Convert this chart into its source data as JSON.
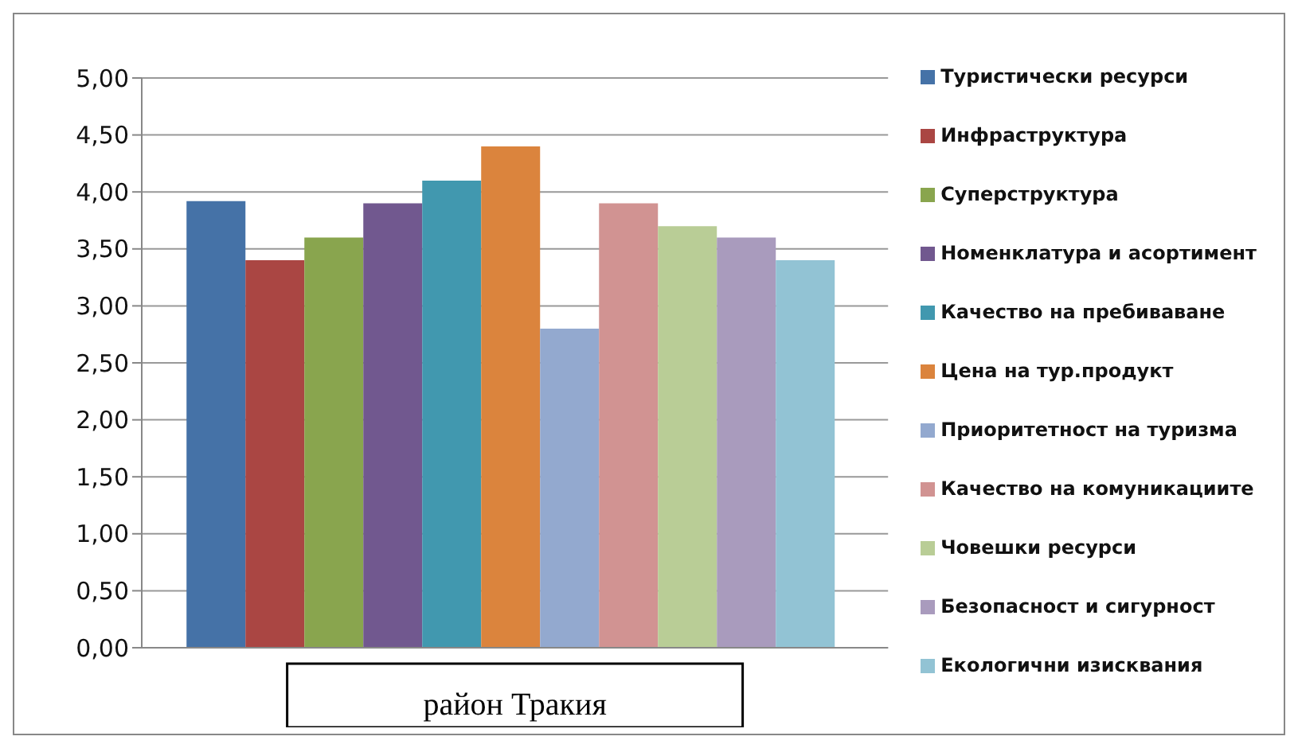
{
  "chart_data": {
    "type": "bar",
    "categories": [
      "район Тракия"
    ],
    "series": [
      {
        "name": "Туристически ресурси",
        "color": "#4572a7",
        "values": [
          3.92
        ]
      },
      {
        "name": "Инфраструктура",
        "color": "#aa4643",
        "values": [
          3.4
        ]
      },
      {
        "name": "Суперструктура",
        "color": "#89a54e",
        "values": [
          3.6
        ]
      },
      {
        "name": "Номенклатура и асортимент",
        "color": "#71588f",
        "values": [
          3.9
        ]
      },
      {
        "name": "Качество на пребиваване",
        "color": "#4198af",
        "values": [
          4.1
        ]
      },
      {
        "name": "Цена на тур.продукт",
        "color": "#db843d",
        "values": [
          4.4
        ]
      },
      {
        "name": "Приоритетност на туризма",
        "color": "#93a9cf",
        "values": [
          2.8
        ]
      },
      {
        "name": "Качество на комуникациите",
        "color": "#d19392",
        "values": [
          3.9
        ]
      },
      {
        "name": "Човешки ресурси",
        "color": "#b9cd96",
        "values": [
          3.7
        ]
      },
      {
        "name": "Безопасност и сигурност",
        "color": "#a99bbd",
        "values": [
          3.6
        ]
      },
      {
        "name": "Екологични изисквания",
        "color": "#92c3d4",
        "values": [
          3.4
        ]
      }
    ],
    "ylim": [
      0,
      5
    ],
    "yticks": [
      {
        "value": 0,
        "label": "0,00"
      },
      {
        "value": 0.5,
        "label": "0,50"
      },
      {
        "value": 1,
        "label": "1,00"
      },
      {
        "value": 1.5,
        "label": "1,50"
      },
      {
        "value": 2,
        "label": "2,00"
      },
      {
        "value": 2.5,
        "label": "2,50"
      },
      {
        "value": 3,
        "label": "3,00"
      },
      {
        "value": 3.5,
        "label": "3,50"
      },
      {
        "value": 4,
        "label": "4,00"
      },
      {
        "value": 4.5,
        "label": "4,50"
      },
      {
        "value": 5,
        "label": "5,00"
      }
    ],
    "grid": "y",
    "legend": "right"
  }
}
